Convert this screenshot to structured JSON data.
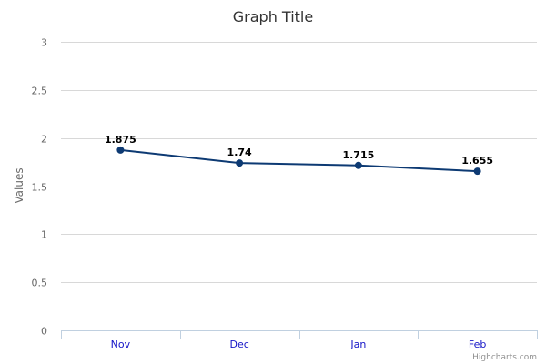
{
  "chart_data": {
    "type": "line",
    "title": "Graph Title",
    "xlabel": "",
    "ylabel": "Values",
    "categories": [
      "Nov",
      "Dec",
      "Jan",
      "Feb"
    ],
    "series": [
      {
        "values": [
          1.875,
          1.74,
          1.715,
          1.655
        ],
        "data_labels": [
          "1.875",
          "1.74",
          "1.715",
          "1.655"
        ],
        "color": "#0d3a73"
      }
    ],
    "ylim": [
      0,
      3
    ],
    "yticks": [
      "0",
      "0.5",
      "1",
      "1.5",
      "2",
      "2.5",
      "3"
    ],
    "ytick_values": [
      0,
      0.5,
      1,
      1.5,
      2,
      2.5,
      3
    ],
    "grid": true,
    "legend": "none",
    "axis_label_color": "#1515c7",
    "credits": "Highcharts.com"
  }
}
